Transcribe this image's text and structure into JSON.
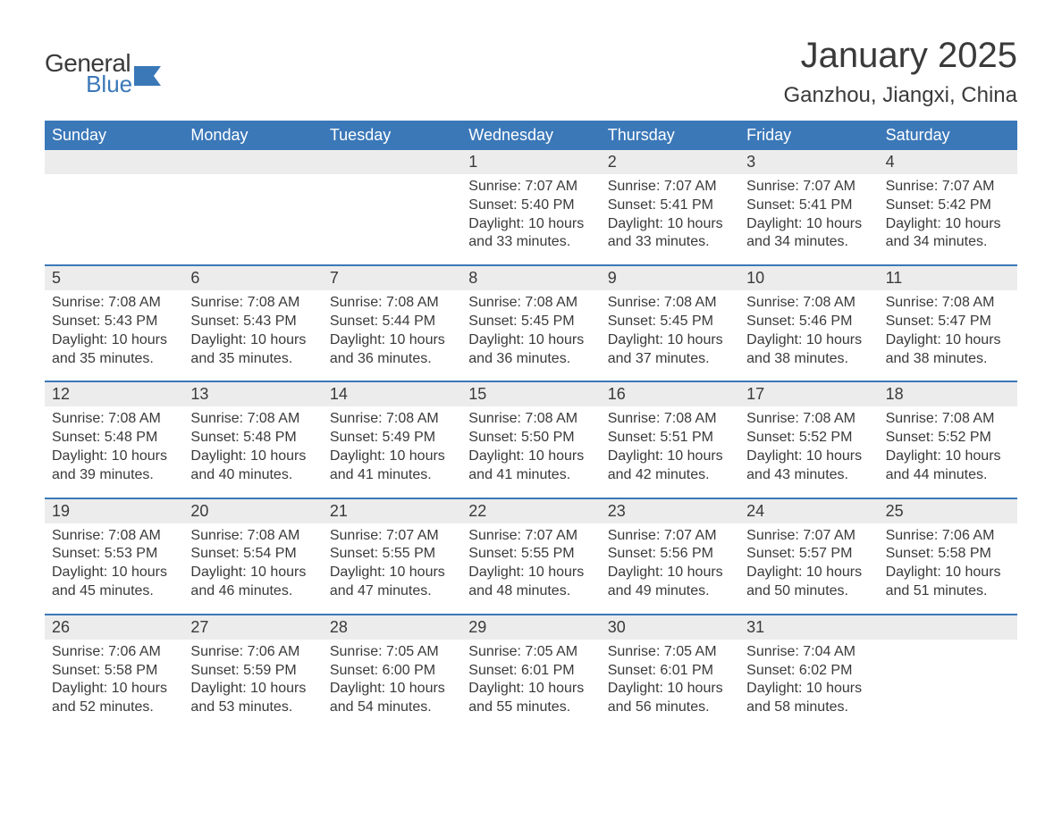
{
  "brand": {
    "name_line1": "General",
    "name_line2": "Blue",
    "text_color": "#3a3a3a",
    "accent_color": "#3b78b8"
  },
  "header": {
    "title": "January 2025",
    "location": "Ganzhou, Jiangxi, China",
    "title_fontsize": 40,
    "location_fontsize": 24
  },
  "styling": {
    "background_color": "#ffffff",
    "header_bar_color": "#3b78b8",
    "header_bar_text_color": "#ffffff",
    "day_number_bg": "#ececec",
    "week_divider_color": "#3b78b8",
    "body_text_color": "#3a3a3a",
    "cell_fontsize": 16,
    "weekday_fontsize": 18,
    "daynum_fontsize": 18
  },
  "weekdays": [
    "Sunday",
    "Monday",
    "Tuesday",
    "Wednesday",
    "Thursday",
    "Friday",
    "Saturday"
  ],
  "labels": {
    "sunrise": "Sunrise:",
    "sunset": "Sunset:",
    "daylight": "Daylight:"
  },
  "weeks": [
    [
      null,
      null,
      null,
      {
        "day": "1",
        "sunrise": "7:07 AM",
        "sunset": "5:40 PM",
        "daylight": "10 hours and 33 minutes."
      },
      {
        "day": "2",
        "sunrise": "7:07 AM",
        "sunset": "5:41 PM",
        "daylight": "10 hours and 33 minutes."
      },
      {
        "day": "3",
        "sunrise": "7:07 AM",
        "sunset": "5:41 PM",
        "daylight": "10 hours and 34 minutes."
      },
      {
        "day": "4",
        "sunrise": "7:07 AM",
        "sunset": "5:42 PM",
        "daylight": "10 hours and 34 minutes."
      }
    ],
    [
      {
        "day": "5",
        "sunrise": "7:08 AM",
        "sunset": "5:43 PM",
        "daylight": "10 hours and 35 minutes."
      },
      {
        "day": "6",
        "sunrise": "7:08 AM",
        "sunset": "5:43 PM",
        "daylight": "10 hours and 35 minutes."
      },
      {
        "day": "7",
        "sunrise": "7:08 AM",
        "sunset": "5:44 PM",
        "daylight": "10 hours and 36 minutes."
      },
      {
        "day": "8",
        "sunrise": "7:08 AM",
        "sunset": "5:45 PM",
        "daylight": "10 hours and 36 minutes."
      },
      {
        "day": "9",
        "sunrise": "7:08 AM",
        "sunset": "5:45 PM",
        "daylight": "10 hours and 37 minutes."
      },
      {
        "day": "10",
        "sunrise": "7:08 AM",
        "sunset": "5:46 PM",
        "daylight": "10 hours and 38 minutes."
      },
      {
        "day": "11",
        "sunrise": "7:08 AM",
        "sunset": "5:47 PM",
        "daylight": "10 hours and 38 minutes."
      }
    ],
    [
      {
        "day": "12",
        "sunrise": "7:08 AM",
        "sunset": "5:48 PM",
        "daylight": "10 hours and 39 minutes."
      },
      {
        "day": "13",
        "sunrise": "7:08 AM",
        "sunset": "5:48 PM",
        "daylight": "10 hours and 40 minutes."
      },
      {
        "day": "14",
        "sunrise": "7:08 AM",
        "sunset": "5:49 PM",
        "daylight": "10 hours and 41 minutes."
      },
      {
        "day": "15",
        "sunrise": "7:08 AM",
        "sunset": "5:50 PM",
        "daylight": "10 hours and 41 minutes."
      },
      {
        "day": "16",
        "sunrise": "7:08 AM",
        "sunset": "5:51 PM",
        "daylight": "10 hours and 42 minutes."
      },
      {
        "day": "17",
        "sunrise": "7:08 AM",
        "sunset": "5:52 PM",
        "daylight": "10 hours and 43 minutes."
      },
      {
        "day": "18",
        "sunrise": "7:08 AM",
        "sunset": "5:52 PM",
        "daylight": "10 hours and 44 minutes."
      }
    ],
    [
      {
        "day": "19",
        "sunrise": "7:08 AM",
        "sunset": "5:53 PM",
        "daylight": "10 hours and 45 minutes."
      },
      {
        "day": "20",
        "sunrise": "7:08 AM",
        "sunset": "5:54 PM",
        "daylight": "10 hours and 46 minutes."
      },
      {
        "day": "21",
        "sunrise": "7:07 AM",
        "sunset": "5:55 PM",
        "daylight": "10 hours and 47 minutes."
      },
      {
        "day": "22",
        "sunrise": "7:07 AM",
        "sunset": "5:55 PM",
        "daylight": "10 hours and 48 minutes."
      },
      {
        "day": "23",
        "sunrise": "7:07 AM",
        "sunset": "5:56 PM",
        "daylight": "10 hours and 49 minutes."
      },
      {
        "day": "24",
        "sunrise": "7:07 AM",
        "sunset": "5:57 PM",
        "daylight": "10 hours and 50 minutes."
      },
      {
        "day": "25",
        "sunrise": "7:06 AM",
        "sunset": "5:58 PM",
        "daylight": "10 hours and 51 minutes."
      }
    ],
    [
      {
        "day": "26",
        "sunrise": "7:06 AM",
        "sunset": "5:58 PM",
        "daylight": "10 hours and 52 minutes."
      },
      {
        "day": "27",
        "sunrise": "7:06 AM",
        "sunset": "5:59 PM",
        "daylight": "10 hours and 53 minutes."
      },
      {
        "day": "28",
        "sunrise": "7:05 AM",
        "sunset": "6:00 PM",
        "daylight": "10 hours and 54 minutes."
      },
      {
        "day": "29",
        "sunrise": "7:05 AM",
        "sunset": "6:01 PM",
        "daylight": "10 hours and 55 minutes."
      },
      {
        "day": "30",
        "sunrise": "7:05 AM",
        "sunset": "6:01 PM",
        "daylight": "10 hours and 56 minutes."
      },
      {
        "day": "31",
        "sunrise": "7:04 AM",
        "sunset": "6:02 PM",
        "daylight": "10 hours and 58 minutes."
      },
      null
    ]
  ]
}
